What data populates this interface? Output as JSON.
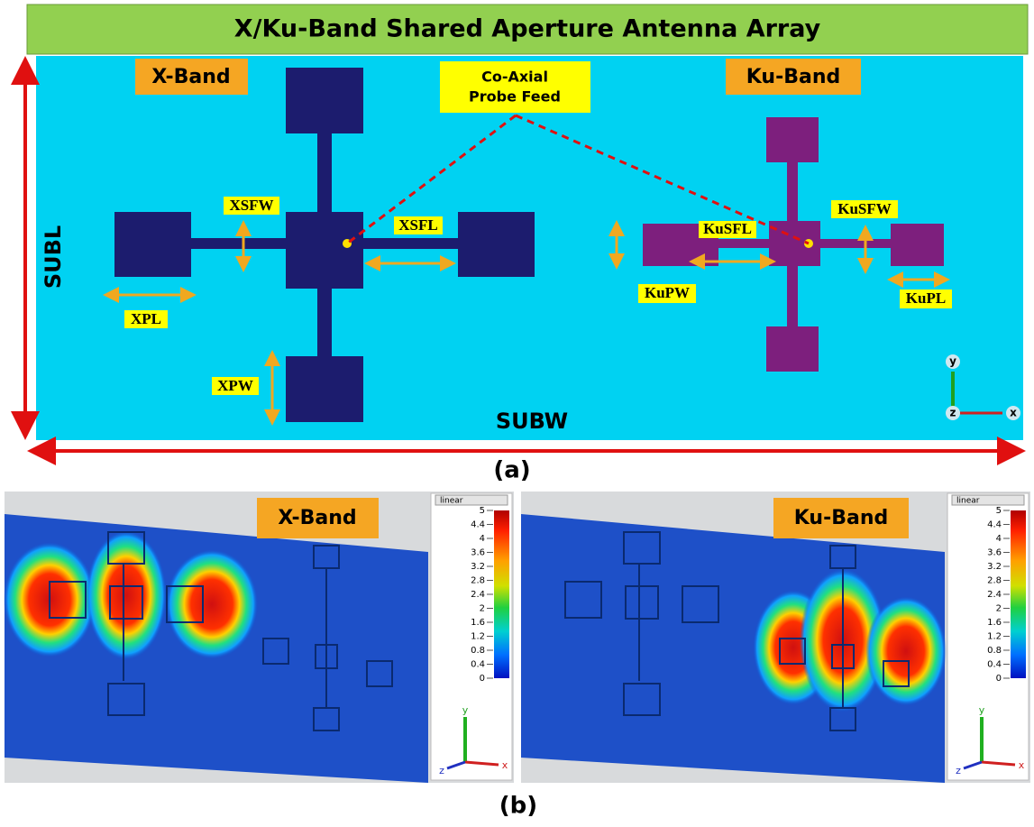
{
  "title": "X/Ku-Band Shared Aperture Antenna Array",
  "panel_a": {
    "x_band_label": "X-Band",
    "ku_band_label": "Ku-Band",
    "feed_label": [
      "Co-Axial",
      "Probe Feed"
    ],
    "dimensions": {
      "xsfw": "XSFW",
      "xsfl": "XSFL",
      "xpl": "XPL",
      "xpw": "XPW",
      "kusfl": "KuSFL",
      "kusfw": "KuSFW",
      "kupw": "KuPW",
      "kupl": "KuPL"
    },
    "subl": "SUBL",
    "subw": "SUBW",
    "axes": {
      "y": "y",
      "z": "z",
      "x": "x"
    },
    "caption": "(a)"
  },
  "panel_b": {
    "panels": [
      {
        "band": "X-Band",
        "scale": "linear",
        "ticks": [
          "5",
          "4.4",
          "4",
          "3.6",
          "3.2",
          "2.8",
          "2.4",
          "2",
          "1.6",
          "1.2",
          "0.8",
          "0.4",
          "0"
        ],
        "axes": {
          "y": "y",
          "z": "z",
          "x": "x"
        }
      },
      {
        "band": "Ku-Band",
        "scale": "linear",
        "ticks": [
          "5",
          "4.4",
          "4",
          "3.6",
          "3.2",
          "2.8",
          "2.4",
          "2",
          "1.6",
          "1.2",
          "0.8",
          "0.4",
          "0"
        ],
        "axes": {
          "y": "y",
          "z": "z",
          "x": "x"
        }
      }
    ],
    "caption": "(b)"
  }
}
